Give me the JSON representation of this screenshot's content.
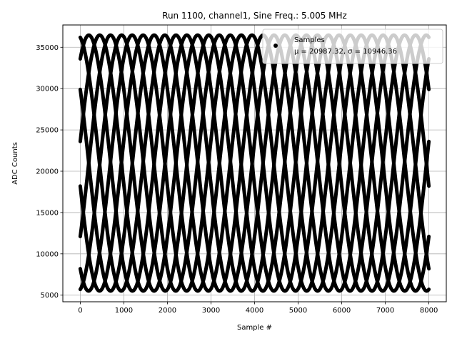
{
  "chart_data": {
    "type": "scatter",
    "title": "Run 1100, channel1, Sine Freq.: 5.005 MHz",
    "xlabel": "Sample #",
    "ylabel": "ADC Counts",
    "xlim": [
      -400,
      8400
    ],
    "ylim": [
      4200,
      37700
    ],
    "xticks": [
      0,
      1000,
      2000,
      3000,
      4000,
      5000,
      6000,
      7000,
      8000
    ],
    "yticks": [
      5000,
      10000,
      15000,
      20000,
      25000,
      30000,
      35000
    ],
    "grid": true,
    "legend": {
      "placement": "top-right",
      "entries": [
        {
          "label": "Samples",
          "stats": "μ = 20987.32, σ = 10946.36",
          "color": "#000000"
        }
      ]
    },
    "series": [
      {
        "name": "Samples",
        "color": "#000000",
        "marker": "dot",
        "signal": {
          "x_range": [
            0,
            8000
          ],
          "mean": 20987.32,
          "amplitude": 15480,
          "period_samples": 2000,
          "phases": [
            {
              "start_value": 36200,
              "direction": "down"
            },
            {
              "start_value": 33600,
              "direction": "up"
            },
            {
              "start_value": 29900,
              "direction": "down"
            },
            {
              "start_value": 23600,
              "direction": "up"
            },
            {
              "start_value": 18200,
              "direction": "down"
            },
            {
              "start_value": 12100,
              "direction": "up"
            },
            {
              "start_value": 8200,
              "direction": "down"
            },
            {
              "start_value": 5700,
              "direction": "up"
            }
          ]
        }
      }
    ]
  }
}
